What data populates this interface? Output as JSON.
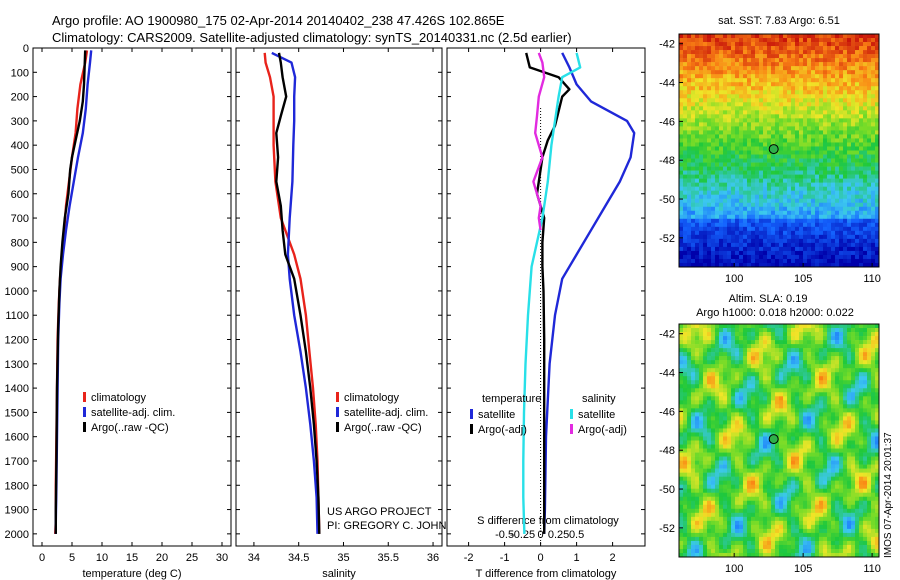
{
  "header": {
    "line1": "Argo profile: AO 1900980_175 02-Apr-2014 20140402_238 47.426S 102.865E",
    "line2": "Climatology: CARS2009. Satellite-adjusted climatology: synTS_20140331.nc (2.5d earlier)"
  },
  "colors": {
    "climatology": "#e8231b",
    "satellite": "#1f28d8",
    "argo": "#000000",
    "sal_sat": "#28e0e8",
    "sal_argo": "#e22be0"
  },
  "credits": {
    "line1": "US ARGO PROJECT",
    "line2": "PI: GREGORY C. JOHNSON"
  },
  "chart_data": [
    {
      "type": "line",
      "xlabel": "temperature (deg C)",
      "ylabel": "",
      "xlim": [
        -1.5,
        31.5
      ],
      "ylim": [
        2050,
        0
      ],
      "xticks": [
        0,
        5,
        10,
        15,
        20,
        25,
        30
      ],
      "yticks": [
        0,
        100,
        200,
        300,
        400,
        500,
        600,
        700,
        800,
        900,
        1000,
        1100,
        1200,
        1300,
        1400,
        1500,
        1600,
        1700,
        1800,
        1900,
        2000
      ],
      "legend": [
        "climatology",
        "satellite-adj. clim.",
        "Argo(..raw -QC)"
      ],
      "legend_position": "lower-right",
      "series": [
        {
          "name": "climatology",
          "color": "climatology",
          "x": [
            7.5,
            7.2,
            6.4,
            5.9,
            5.6,
            5.0,
            4.5,
            4.0,
            3.7,
            3.3,
            3.0,
            2.8,
            2.6,
            2.5,
            2.4,
            2.3,
            2.3,
            2.2
          ],
          "y": [
            10,
            60,
            150,
            250,
            350,
            450,
            550,
            650,
            750,
            850,
            950,
            1050,
            1200,
            1400,
            1600,
            1800,
            1950,
            2000
          ]
        },
        {
          "name": "satellite-adj. clim.",
          "color": "satellite",
          "x": [
            8.2,
            8.0,
            7.6,
            7.3,
            6.8,
            6.0,
            5.3,
            4.6,
            4.0,
            3.5,
            3.1,
            2.9,
            2.7,
            2.6,
            2.5,
            2.4,
            2.3,
            2.3
          ],
          "y": [
            10,
            60,
            150,
            250,
            350,
            450,
            550,
            650,
            750,
            850,
            950,
            1050,
            1200,
            1400,
            1600,
            1800,
            1950,
            2000
          ]
        },
        {
          "name": "Argo(..raw -QC)",
          "color": "argo",
          "x": [
            7.2,
            7.1,
            7.0,
            6.8,
            6.3,
            5.6,
            5.0,
            4.7,
            4.4,
            4.1,
            3.8,
            3.4,
            3.1,
            2.9,
            2.7,
            2.5,
            2.4,
            2.3,
            2.3
          ],
          "y": [
            10,
            80,
            150,
            220,
            300,
            380,
            450,
            500,
            600,
            650,
            700,
            800,
            900,
            1000,
            1150,
            1400,
            1700,
            1900,
            2000
          ]
        }
      ]
    },
    {
      "type": "line",
      "xlabel": "salinity",
      "ylabel": "",
      "xlim": [
        33.8,
        36.1
      ],
      "ylim": [
        2050,
        0
      ],
      "xticks": [
        34,
        34.5,
        35,
        35.5,
        36
      ],
      "legend": [
        "climatology",
        "satellite-adj. clim.",
        "Argo(..raw -QC)"
      ],
      "legend_position": "lower-right",
      "series": [
        {
          "name": "climatology",
          "color": "climatology",
          "x": [
            34.12,
            34.13,
            34.18,
            34.22,
            34.22,
            34.22,
            34.24,
            34.3,
            34.45,
            34.52,
            34.58,
            34.62,
            34.66,
            34.69,
            34.71,
            34.72,
            34.73
          ],
          "y": [
            20,
            60,
            120,
            200,
            300,
            400,
            550,
            700,
            850,
            950,
            1100,
            1250,
            1400,
            1550,
            1700,
            1850,
            2000
          ]
        },
        {
          "name": "satellite-adj. clim.",
          "color": "satellite",
          "x": [
            34.2,
            34.42,
            34.46,
            34.45,
            34.45,
            34.44,
            34.43,
            34.4,
            34.38,
            34.4,
            34.45,
            34.52,
            34.58,
            34.63,
            34.67,
            34.7,
            34.71
          ],
          "y": [
            20,
            60,
            120,
            200,
            300,
            400,
            550,
            700,
            850,
            950,
            1100,
            1250,
            1400,
            1550,
            1700,
            1850,
            2000
          ]
        },
        {
          "name": "Argo(..raw -QC)",
          "color": "argo",
          "x": [
            34.28,
            34.3,
            34.32,
            34.36,
            34.3,
            34.25,
            34.27,
            34.25,
            34.3,
            34.32,
            34.35,
            34.45,
            34.52,
            34.58,
            34.63,
            34.67,
            34.7,
            34.72,
            34.73
          ],
          "y": [
            20,
            60,
            120,
            200,
            280,
            350,
            450,
            550,
            650,
            750,
            850,
            950,
            1100,
            1250,
            1400,
            1550,
            1700,
            1850,
            2000
          ]
        }
      ]
    },
    {
      "type": "line",
      "xlabel": "T difference from climatology",
      "xlabel2": "S difference from climatology",
      "ylabel": "",
      "xlim": [
        -2.6,
        2.9
      ],
      "ylim": [
        2050,
        0
      ],
      "xticks": [
        -2,
        -1,
        0,
        1,
        2
      ],
      "xticks2_values": [
        -1,
        -0.5,
        0,
        0.5,
        1
      ],
      "xticks2_labels": [
        "-0.5",
        "-0.25",
        "0",
        "0.25",
        "0.5"
      ],
      "legend_groups": [
        {
          "title": "temperature",
          "entries": [
            "satellite",
            "Argo(-adj)"
          ]
        },
        {
          "title": "salinity",
          "entries": [
            "satellite",
            "Argo(-adj)"
          ]
        }
      ],
      "legend_position": "lower-center",
      "series": [
        {
          "name": "satellite",
          "group": "temperature",
          "color": "satellite",
          "x": [
            0.6,
            0.8,
            1.0,
            1.4,
            1.9,
            2.4,
            2.6,
            2.5,
            2.2,
            1.8,
            1.4,
            1.0,
            0.6,
            0.4,
            0.25,
            0.15,
            0.12,
            0.1
          ],
          "y": [
            20,
            80,
            150,
            220,
            260,
            300,
            350,
            450,
            550,
            650,
            750,
            850,
            950,
            1100,
            1300,
            1600,
            1900,
            2000
          ]
        },
        {
          "name": "Argo(-adj)",
          "group": "temperature",
          "color": "argo",
          "x": [
            -0.4,
            -0.3,
            0.5,
            0.8,
            0.6,
            0.5,
            0.4,
            0.2,
            0.05,
            -0.1,
            0.1,
            0.05,
            0.05,
            0.08,
            0.1,
            0.1,
            0.1,
            0.1
          ],
          "y": [
            20,
            80,
            120,
            170,
            200,
            260,
            320,
            380,
            450,
            600,
            700,
            800,
            900,
            1000,
            1200,
            1500,
            1800,
            2000
          ]
        },
        {
          "name": "satellite",
          "group": "salinity",
          "color": "sal_sat",
          "x": [
            1.0,
            1.1,
            0.6,
            0.5,
            0.4,
            0.3,
            0.2,
            0.05,
            -0.1,
            -0.25,
            -0.35,
            -0.42,
            -0.46,
            -0.48,
            -0.48,
            -0.46,
            -0.45
          ],
          "y": [
            20,
            80,
            120,
            200,
            300,
            400,
            550,
            700,
            800,
            900,
            1100,
            1300,
            1500,
            1700,
            1850,
            1950,
            2000
          ]
        },
        {
          "name": "Argo(-adj)",
          "group": "salinity",
          "color": "sal_argo",
          "x": [
            -0.05,
            0.05,
            0.1,
            -0.05,
            -0.1,
            -0.15,
            0.05,
            -0.2,
            -0.1,
            0.0,
            -0.05,
            0.0
          ],
          "y": [
            20,
            60,
            120,
            200,
            280,
            350,
            450,
            550,
            600,
            650,
            700,
            750
          ]
        }
      ]
    },
    {
      "type": "heatmap",
      "title": "sat. SST: 7.83 Argo: 6.51",
      "xticks": [
        100,
        105,
        110
      ],
      "yticks": [
        -42,
        -44,
        -46,
        -48,
        -50,
        -52
      ],
      "xlim": [
        96,
        110.5
      ],
      "ylim": [
        -53.5,
        -41.5
      ],
      "marker": {
        "x": 102.865,
        "y": -47.426
      }
    },
    {
      "type": "heatmap",
      "title": "Altim. SLA: 0.19",
      "subtitle": "Argo h1000: 0.018 h2000: 0.022",
      "xticks": [
        100,
        105,
        110
      ],
      "yticks": [
        -42,
        -44,
        -46,
        -48,
        -50,
        -52
      ],
      "xlim": [
        96,
        110.5
      ],
      "ylim": [
        -53.5,
        -41.5
      ],
      "marker": {
        "x": 102.865,
        "y": -47.426
      },
      "side_label": "IMOS 07-Apr-2014 20:01:37"
    }
  ]
}
